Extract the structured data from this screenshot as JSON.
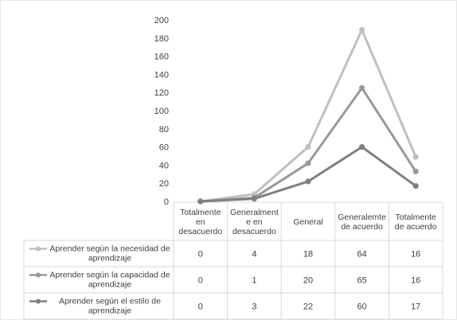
{
  "chart_data": {
    "type": "line",
    "categories": [
      "Totalmente en desacuerdo",
      "Generalmente en desacuerdo",
      "General",
      "Generalemte de acuerdo",
      "Totalmente de acuerdo"
    ],
    "category_lines": [
      [
        "Totalmente",
        "en",
        "desacuerdo"
      ],
      [
        "Generalment",
        "e en",
        "desacuerdo"
      ],
      [
        "General"
      ],
      [
        "Generalemte",
        "de acuerdo"
      ],
      [
        "Totalmente",
        "de acuerdo"
      ]
    ],
    "ylim": [
      0,
      200
    ],
    "yticks": [
      0,
      20,
      40,
      60,
      80,
      100,
      120,
      140,
      160,
      180,
      200
    ],
    "stacked": true,
    "data_table": true,
    "grid": false,
    "series": [
      {
        "name": "Aprender según la necesidad de aprendizaje",
        "name_lines": [
          "Aprender según la necesidad de",
          "aprendizaje"
        ],
        "values": [
          0,
          4,
          18,
          64,
          16
        ],
        "color": "#bfbfbf"
      },
      {
        "name": "Aprender según la capacidad de aprendizaje",
        "name_lines": [
          "Aprender según la capacidad de",
          "aprendizaje"
        ],
        "values": [
          0,
          1,
          20,
          65,
          16
        ],
        "color": "#999999"
      },
      {
        "name": "Aprender según el estilo de aprendizaje",
        "name_lines": [
          "Aprender según el estilo de",
          "aprendizaje"
        ],
        "values": [
          0,
          3,
          22,
          60,
          17
        ],
        "color": "#7f7f7f"
      }
    ]
  }
}
